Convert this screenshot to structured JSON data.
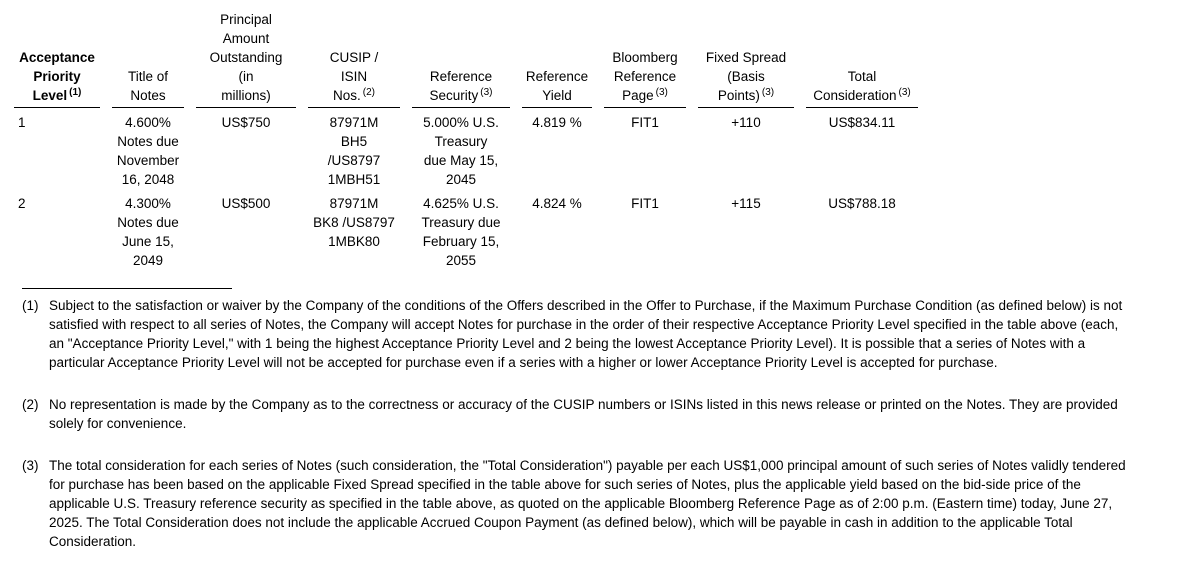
{
  "table": {
    "columns": [
      {
        "lines": [
          "Acceptance",
          "Priority",
          "Level"
        ],
        "sup": "(1)"
      },
      {
        "lines": [
          "Title of",
          "Notes"
        ],
        "sup": ""
      },
      {
        "lines": [
          "Principal",
          "Amount",
          "Outstanding",
          "(in",
          "millions)"
        ],
        "sup": ""
      },
      {
        "lines": [
          "CUSIP /",
          "ISIN",
          "Nos."
        ],
        "sup": "(2)"
      },
      {
        "lines": [
          "Reference",
          "Security"
        ],
        "sup": "(3)"
      },
      {
        "lines": [
          "Reference",
          "Yield"
        ],
        "sup": ""
      },
      {
        "lines": [
          "Bloomberg",
          "Reference",
          "Page"
        ],
        "sup": "(3)"
      },
      {
        "lines": [
          "Fixed Spread",
          "(Basis",
          "Points)"
        ],
        "sup": "(3)"
      },
      {
        "lines": [
          "Total",
          "Consideration"
        ],
        "sup": "(3)"
      }
    ],
    "rows": [
      {
        "cells": [
          [
            "1"
          ],
          [
            "4.600%",
            "Notes due",
            "November",
            "16, 2048"
          ],
          [
            "US$750"
          ],
          [
            "87971M",
            "BH5",
            "/US8797",
            "1MBH51"
          ],
          [
            "5.000% U.S.",
            "Treasury",
            "due May 15,",
            "2045"
          ],
          [
            "4.819 %"
          ],
          [
            "FIT1"
          ],
          [
            "+110"
          ],
          [
            "US$834.11"
          ]
        ]
      },
      {
        "cells": [
          [
            "2"
          ],
          [
            "4.300%",
            "Notes due",
            "June 15,",
            "2049"
          ],
          [
            "US$500"
          ],
          [
            "87971M",
            "BK8 /US8797",
            "1MBK80"
          ],
          [
            "4.625% U.S.",
            "Treasury due",
            "February 15,",
            "2055"
          ],
          [
            "4.824 %"
          ],
          [
            "FIT1"
          ],
          [
            "+115"
          ],
          [
            "US$788.18"
          ]
        ]
      }
    ]
  },
  "footnotes": [
    {
      "ref": "(1)",
      "text": "Subject to the satisfaction or waiver by the Company of the conditions of the Offers described in the Offer to Purchase, if the Maximum Purchase Condition (as defined below) is not satisfied with respect to all series of Notes, the Company will accept Notes for purchase in the order of their respective Acceptance Priority Level specified in the table above (each, an \"Acceptance Priority Level,\" with 1 being the highest Acceptance Priority Level and 2 being the lowest Acceptance Priority Level). It is possible that a series of Notes with a particular Acceptance Priority Level will not be accepted for purchase even if a series with a higher or lower Acceptance Priority Level is accepted for purchase."
    },
    {
      "ref": "(2)",
      "text": "No representation is made by the Company as to the correctness or accuracy of the CUSIP numbers or ISINs listed in this news release or printed on the Notes. They are provided solely for convenience."
    },
    {
      "ref": "(3)",
      "text": "The total consideration for each series of Notes (such consideration, the \"Total Consideration\") payable per each US$1,000 principal amount of such series of Notes validly tendered for purchase has been based on the applicable Fixed Spread specified in the table above for such series of Notes, plus the applicable yield based on the bid-side price of the applicable U.S. Treasury reference security as specified in the table above, as quoted on the applicable Bloomberg Reference Page as of 2:00 p.m. (Eastern time) today, June 27, 2025. The Total Consideration does not include the applicable Accrued Coupon Payment (as defined below), which will be payable in cash in addition to the applicable Total Consideration."
    }
  ]
}
